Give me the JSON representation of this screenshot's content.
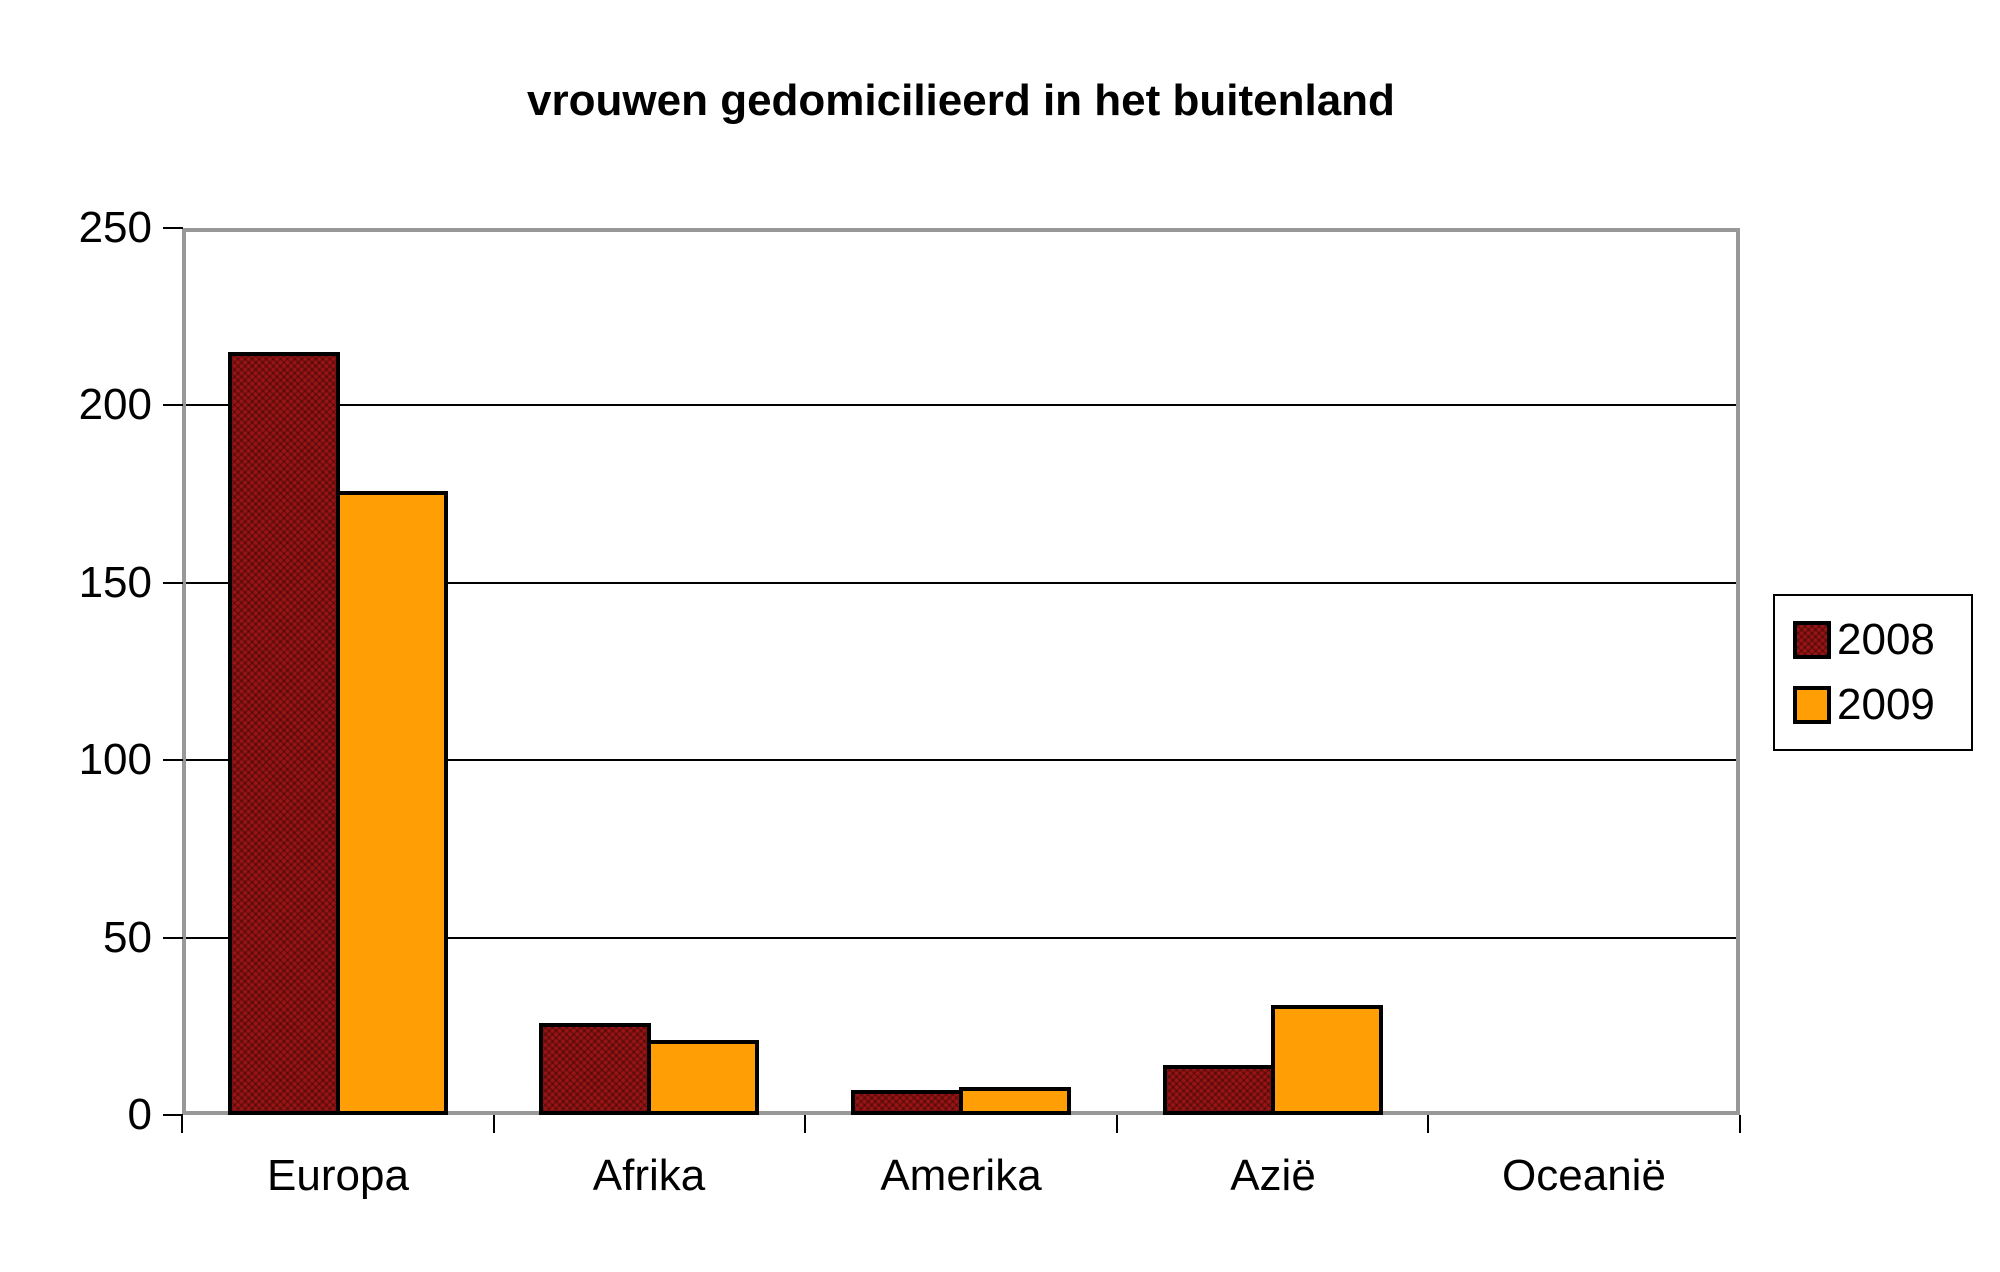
{
  "title": "vrouwen gedomicilieerd in het buitenland",
  "chart_data": {
    "type": "bar",
    "title": "vrouwen gedomicilieerd in het buitenland",
    "categories": [
      "Europa",
      "Afrika",
      "Amerika",
      "Azië",
      "Oceanië"
    ],
    "series": [
      {
        "name": "2008",
        "color": "#9B1414",
        "values": [
          215,
          26,
          7,
          14,
          0
        ]
      },
      {
        "name": "2009",
        "color": "#FF9E05",
        "values": [
          176,
          21,
          8,
          31,
          0
        ]
      }
    ],
    "xlabel": "",
    "ylabel": "",
    "ylim": [
      0,
      250
    ],
    "yticks": [
      0,
      50,
      100,
      150,
      200,
      250
    ],
    "grid": true,
    "gridline_values": [
      50,
      100,
      150,
      200
    ],
    "legend_position": "right-outside"
  },
  "legend": {
    "items": [
      {
        "label": "2008",
        "color": "#9B1414"
      },
      {
        "label": "2009",
        "color": "#FF9E05"
      }
    ]
  },
  "colors": {
    "series_2008": "#9B1414",
    "series_2009": "#FF9E05",
    "plot_frame": "#989898",
    "gridline": "#000000",
    "bar_border": "#000000",
    "text": "#000000",
    "background": "#FFFFFF"
  }
}
